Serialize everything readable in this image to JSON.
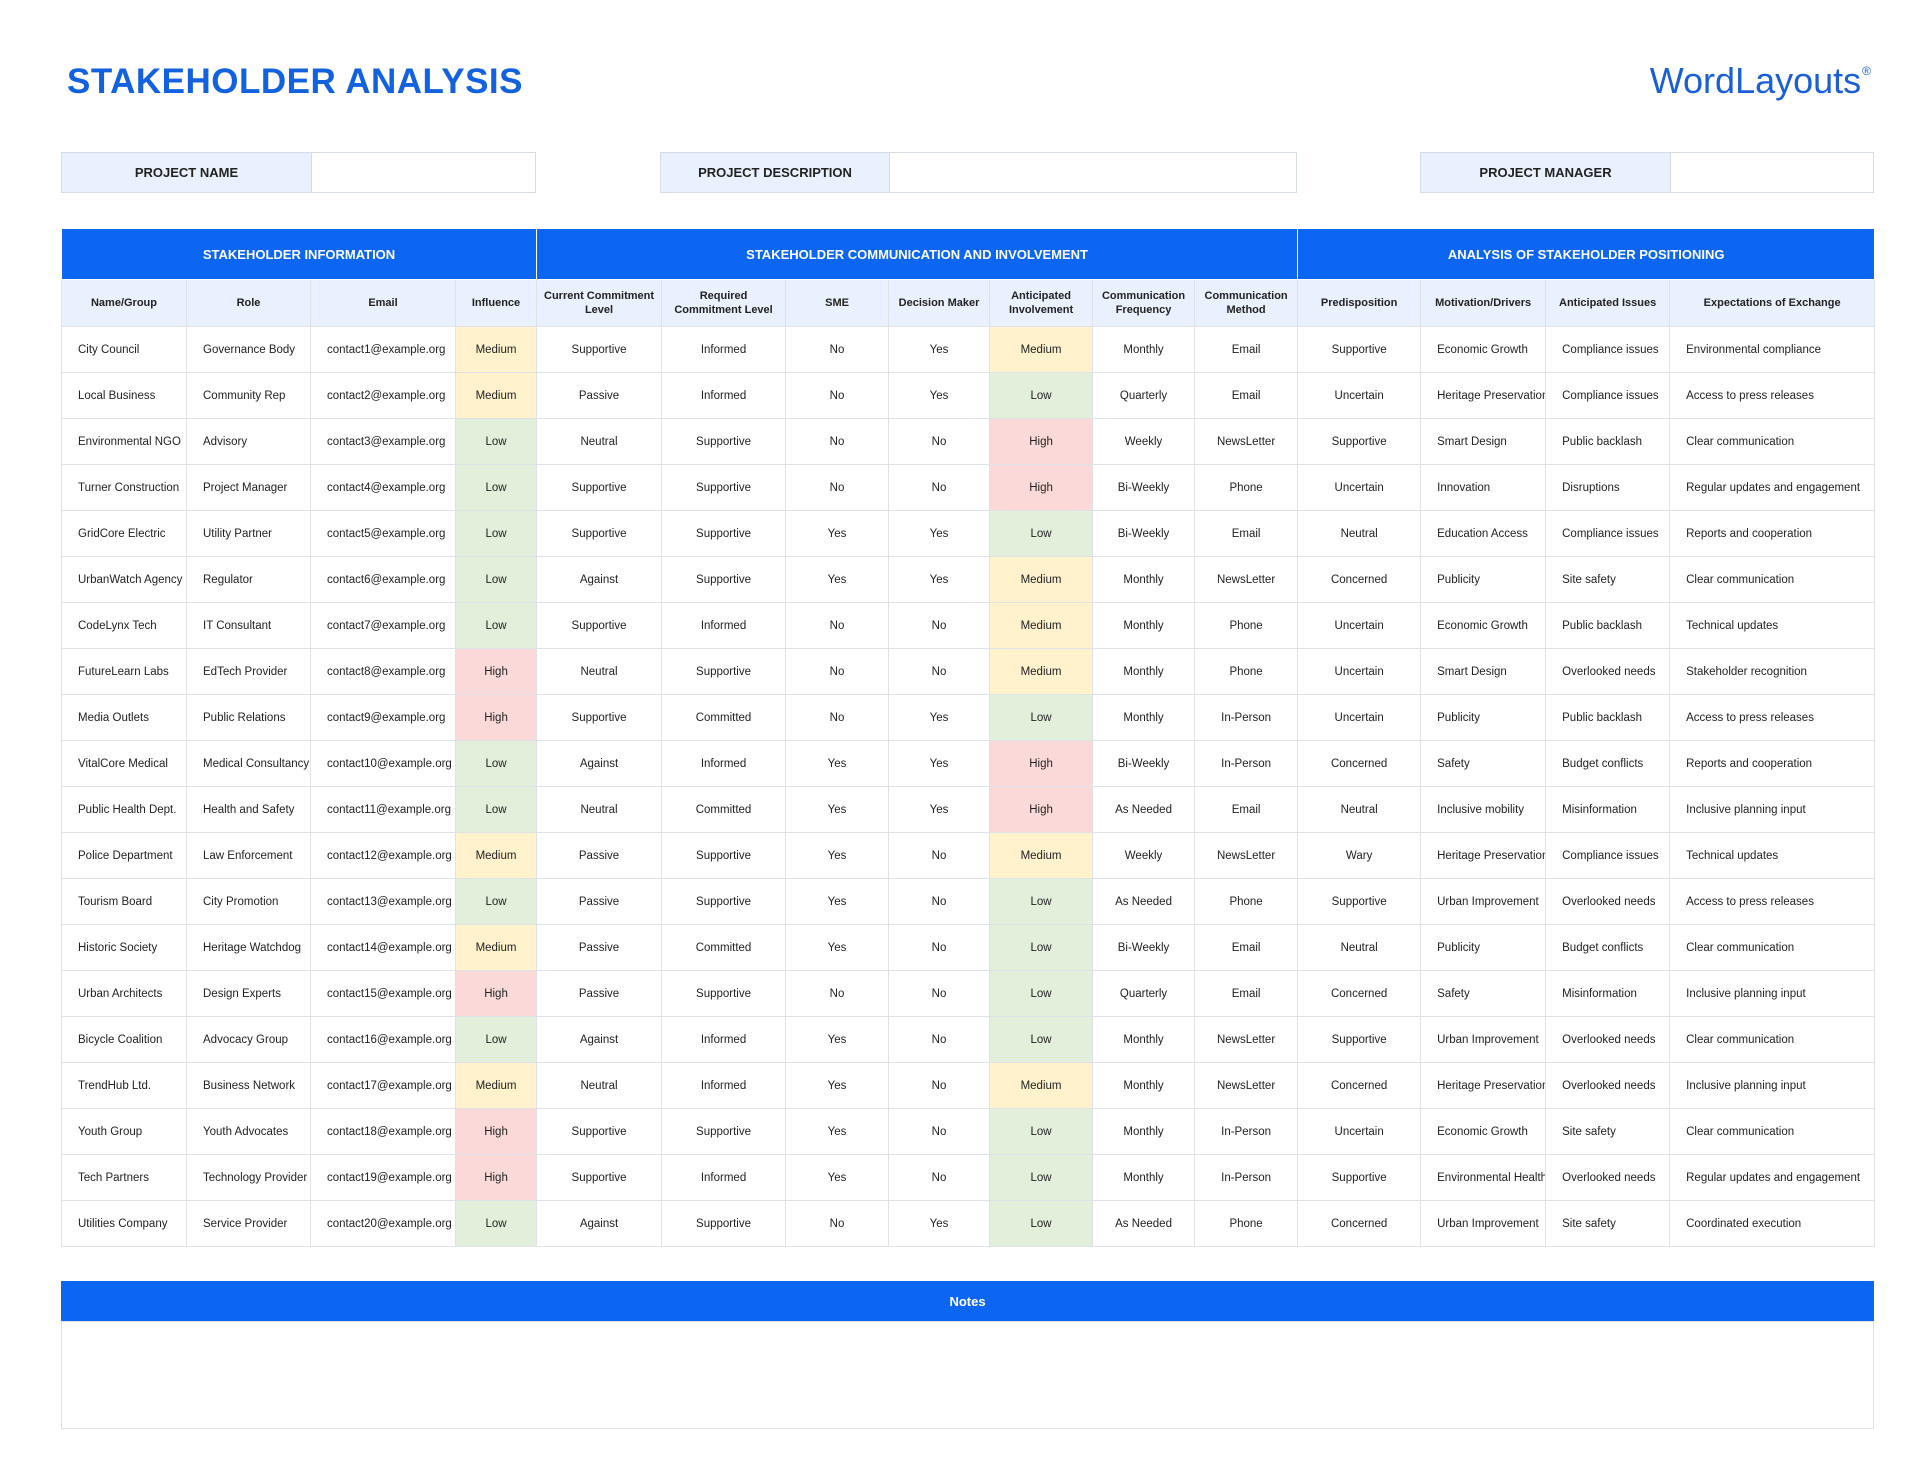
{
  "header": {
    "title": "STAKEHOLDER ANALYSIS",
    "logo": "WordLayouts",
    "logo_mark": "®"
  },
  "project_fields": [
    "PROJECT NAME",
    "PROJECT DESCRIPTION",
    "PROJECT MANAGER"
  ],
  "highlight_colors": {
    "Low": "#e2efda",
    "Medium": "#fff2cc",
    "High": "#fcd9d9"
  },
  "table": {
    "groups": [
      "STAKEHOLDER INFORMATION",
      "STAKEHOLDER COMMUNICATION AND INVOLVEMENT",
      "ANALYSIS OF STAKEHOLDER POSITIONING"
    ],
    "columns": [
      "Name/Group",
      "Role",
      "Email",
      "Influence",
      "Current Commitment Level",
      "Required Commitment Level",
      "SME",
      "Decision Maker",
      "Anticipated Involvement",
      "Communication Frequency",
      "Communication Method",
      "Predisposition",
      "Motivation/Drivers",
      "Anticipated Issues",
      "Expectations of Exchange"
    ],
    "rows": [
      [
        "City Council",
        "Governance Body",
        "contact1@example.org",
        "Medium",
        "Supportive",
        "Informed",
        "No",
        "Yes",
        "Medium",
        "Monthly",
        "Email",
        "Supportive",
        "Economic Growth",
        "Compliance issues",
        "Environmental compliance"
      ],
      [
        "Local Business",
        "Community Rep",
        "contact2@example.org",
        "Medium",
        "Passive",
        "Informed",
        "No",
        "Yes",
        "Low",
        "Quarterly",
        "Email",
        "Uncertain",
        "Heritage Preservation",
        "Compliance issues",
        "Access to press releases"
      ],
      [
        "Environmental NGO",
        "Advisory",
        "contact3@example.org",
        "Low",
        "Neutral",
        "Supportive",
        "No",
        "No",
        "High",
        "Weekly",
        "NewsLetter",
        "Supportive",
        "Smart Design",
        "Public backlash",
        "Clear communication"
      ],
      [
        "Turner Construction",
        "Project Manager",
        "contact4@example.org",
        "Low",
        "Supportive",
        "Supportive",
        "No",
        "No",
        "High",
        "Bi-Weekly",
        "Phone",
        "Uncertain",
        "Innovation",
        "Disruptions",
        "Regular updates and engagement"
      ],
      [
        "GridCore Electric",
        "Utility Partner",
        "contact5@example.org",
        "Low",
        "Supportive",
        "Supportive",
        "Yes",
        "Yes",
        "Low",
        "Bi-Weekly",
        "Email",
        "Neutral",
        "Education Access",
        "Compliance issues",
        "Reports and cooperation"
      ],
      [
        "UrbanWatch Agency",
        "Regulator",
        "contact6@example.org",
        "Low",
        "Against",
        "Supportive",
        "Yes",
        "Yes",
        "Medium",
        "Monthly",
        "NewsLetter",
        "Concerned",
        "Publicity",
        "Site safety",
        "Clear communication"
      ],
      [
        "CodeLynx Tech",
        "IT Consultant",
        "contact7@example.org",
        "Low",
        "Supportive",
        "Informed",
        "No",
        "No",
        "Medium",
        "Monthly",
        "Phone",
        "Uncertain",
        "Economic Growth",
        "Public backlash",
        "Technical updates"
      ],
      [
        "FutureLearn Labs",
        "EdTech Provider",
        "contact8@example.org",
        "High",
        "Neutral",
        "Supportive",
        "No",
        "No",
        "Medium",
        "Monthly",
        "Phone",
        "Uncertain",
        "Smart Design",
        "Overlooked needs",
        "Stakeholder recognition"
      ],
      [
        "Media Outlets",
        "Public Relations",
        "contact9@example.org",
        "High",
        "Supportive",
        "Committed",
        "No",
        "Yes",
        "Low",
        "Monthly",
        "In-Person",
        "Uncertain",
        "Publicity",
        "Public backlash",
        "Access to press releases"
      ],
      [
        "VitalCore Medical",
        "Medical Consultancy",
        "contact10@example.org",
        "Low",
        "Against",
        "Informed",
        "Yes",
        "Yes",
        "High",
        "Bi-Weekly",
        "In-Person",
        "Concerned",
        "Safety",
        "Budget conflicts",
        "Reports and cooperation"
      ],
      [
        "Public Health Dept.",
        "Health and Safety",
        "contact11@example.org",
        "Low",
        "Neutral",
        "Committed",
        "Yes",
        "Yes",
        "High",
        "As Needed",
        "Email",
        "Neutral",
        "Inclusive mobility",
        "Misinformation",
        "Inclusive planning input"
      ],
      [
        "Police Department",
        "Law Enforcement",
        "contact12@example.org",
        "Medium",
        "Passive",
        "Supportive",
        "Yes",
        "No",
        "Medium",
        "Weekly",
        "NewsLetter",
        "Wary",
        "Heritage Preservation",
        "Compliance issues",
        "Technical updates"
      ],
      [
        "Tourism Board",
        "City Promotion",
        "contact13@example.org",
        "Low",
        "Passive",
        "Supportive",
        "Yes",
        "No",
        "Low",
        "As Needed",
        "Phone",
        "Supportive",
        "Urban Improvement",
        "Overlooked needs",
        "Access to press releases"
      ],
      [
        "Historic Society",
        "Heritage Watchdog",
        "contact14@example.org",
        "Medium",
        "Passive",
        "Committed",
        "Yes",
        "No",
        "Low",
        "Bi-Weekly",
        "Email",
        "Neutral",
        "Publicity",
        "Budget conflicts",
        "Clear communication"
      ],
      [
        "Urban Architects",
        "Design Experts",
        "contact15@example.org",
        "High",
        "Passive",
        "Supportive",
        "No",
        "No",
        "Low",
        "Quarterly",
        "Email",
        "Concerned",
        "Safety",
        "Misinformation",
        "Inclusive planning input"
      ],
      [
        "Bicycle Coalition",
        "Advocacy Group",
        "contact16@example.org",
        "Low",
        "Against",
        "Informed",
        "Yes",
        "No",
        "Low",
        "Monthly",
        "NewsLetter",
        "Supportive",
        "Urban Improvement",
        "Overlooked needs",
        "Clear communication"
      ],
      [
        "TrendHub Ltd.",
        "Business Network",
        "contact17@example.org",
        "Medium",
        "Neutral",
        "Informed",
        "Yes",
        "No",
        "Medium",
        "Monthly",
        "NewsLetter",
        "Concerned",
        "Heritage Preservation",
        "Overlooked needs",
        "Inclusive planning input"
      ],
      [
        "Youth Group",
        "Youth Advocates",
        "contact18@example.org",
        "High",
        "Supportive",
        "Supportive",
        "Yes",
        "No",
        "Low",
        "Monthly",
        "In-Person",
        "Uncertain",
        "Economic Growth",
        "Site safety",
        "Clear communication"
      ],
      [
        "Tech Partners",
        "Technology Provider",
        "contact19@example.org",
        "High",
        "Supportive",
        "Informed",
        "Yes",
        "No",
        "Low",
        "Monthly",
        "In-Person",
        "Supportive",
        "Environmental Health",
        "Overlooked needs",
        "Regular updates and engagement"
      ],
      [
        "Utilities Company",
        "Service Provider",
        "contact20@example.org",
        "Low",
        "Against",
        "Supportive",
        "No",
        "Yes",
        "Low",
        "As Needed",
        "Phone",
        "Concerned",
        "Urban Improvement",
        "Site safety",
        "Coordinated execution"
      ]
    ]
  },
  "notes": {
    "title": "Notes"
  }
}
